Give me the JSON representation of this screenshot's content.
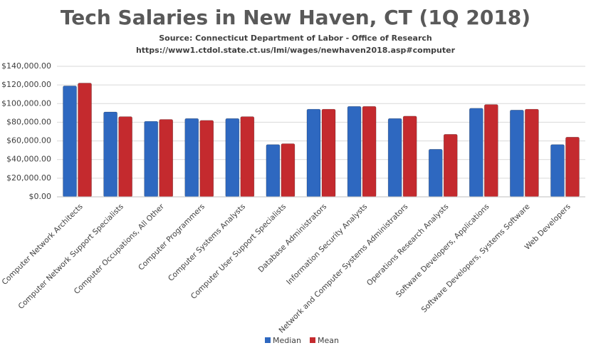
{
  "chart_data": {
    "type": "bar",
    "title": "Tech Salaries in New Haven, CT (1Q 2018)",
    "subtitle": "Source: Connecticut Department of Labor - Office of Research",
    "source_url": "https://www1.ctdol.state.ct.us/lmi/wages/newhaven2018.asp#computer",
    "categories": [
      "Computer Network Architects",
      "Computer Network Support Specialists",
      "Computer Occupations, All Other",
      "Computer Programmers",
      "Computer Systems Analysts",
      "Computer User Support Specialists",
      "Database Administrators",
      "Information Security Analysts",
      "Network and Computer Systems Administrators",
      "Operations Research Analysts",
      "Software Developers, Applications",
      "Software Developers, Systems Software",
      "Web Developers"
    ],
    "series": [
      {
        "name": "Median",
        "color": "#2e68c0",
        "values": [
          119000,
          91000,
          81000,
          84000,
          84000,
          56000,
          94000,
          97000,
          84000,
          51000,
          95000,
          93000,
          56000
        ]
      },
      {
        "name": "Mean",
        "color": "#c42a2e",
        "values": [
          122000,
          86000,
          83000,
          82000,
          86000,
          57000,
          94000,
          97000,
          86500,
          67000,
          99000,
          94000,
          64000
        ]
      }
    ],
    "ylim": [
      0,
      140000
    ],
    "yticks": [
      {
        "value": 0,
        "label": "$0.00"
      },
      {
        "value": 20000,
        "label": "$20,000.00"
      },
      {
        "value": 40000,
        "label": "$40,000.00"
      },
      {
        "value": 60000,
        "label": "$60,000.00"
      },
      {
        "value": 80000,
        "label": "$80,000.00"
      },
      {
        "value": 100000,
        "label": "$100,000.00"
      },
      {
        "value": 120000,
        "label": "$120,000.00"
      },
      {
        "value": 140000,
        "label": "$140,000.00"
      }
    ],
    "grid": true,
    "legend": "bottom"
  }
}
